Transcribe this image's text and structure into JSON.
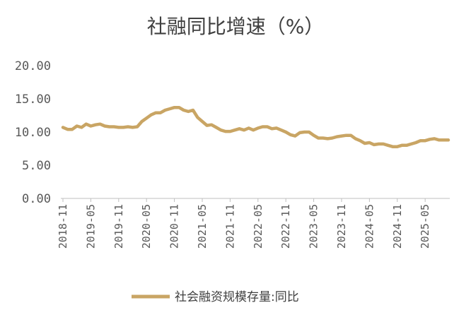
{
  "chart_data": {
    "type": "line",
    "title": "社融同比增速（%）",
    "xlabel": "",
    "ylabel": "",
    "ylim": [
      0,
      20
    ],
    "y_ticks": [
      "0.00",
      "5.00",
      "10.00",
      "15.00",
      "20.00"
    ],
    "x_ticks": [
      "2018-11",
      "2019-05",
      "2019-11",
      "2020-05",
      "2020-11",
      "2021-05",
      "2021-11",
      "2022-05",
      "2022-11",
      "2023-05",
      "2023-11",
      "2024-05",
      "2024-11",
      "2025-05"
    ],
    "grid": false,
    "legend": "bottom",
    "color": "#C9A564",
    "series": [
      {
        "name": "社会融资规模存量:同比",
        "x": [
          "2018-11",
          "2018-12",
          "2019-01",
          "2019-02",
          "2019-03",
          "2019-04",
          "2019-05",
          "2019-06",
          "2019-07",
          "2019-08",
          "2019-09",
          "2019-10",
          "2019-11",
          "2019-12",
          "2020-01",
          "2020-02",
          "2020-03",
          "2020-04",
          "2020-05",
          "2020-06",
          "2020-07",
          "2020-08",
          "2020-09",
          "2020-10",
          "2020-11",
          "2020-12",
          "2021-01",
          "2021-02",
          "2021-03",
          "2021-04",
          "2021-05",
          "2021-06",
          "2021-07",
          "2021-08",
          "2021-09",
          "2021-10",
          "2021-11",
          "2021-12",
          "2022-01",
          "2022-02",
          "2022-03",
          "2022-04",
          "2022-05",
          "2022-06",
          "2022-07",
          "2022-08",
          "2022-09",
          "2022-10",
          "2022-11",
          "2022-12",
          "2023-01",
          "2023-02",
          "2023-03",
          "2023-04",
          "2023-05",
          "2023-06",
          "2023-07",
          "2023-08",
          "2023-09",
          "2023-10",
          "2023-11",
          "2023-12",
          "2024-01",
          "2024-02",
          "2024-03",
          "2024-04",
          "2024-05",
          "2024-06",
          "2024-07",
          "2024-08",
          "2024-09",
          "2024-10",
          "2024-11",
          "2024-12",
          "2025-01",
          "2025-02",
          "2025-03",
          "2025-04",
          "2025-05",
          "2025-06",
          "2025-07",
          "2025-08",
          "2025-09",
          "2025-10"
        ],
        "values": [
          10.7,
          10.4,
          10.4,
          10.9,
          10.7,
          11.2,
          10.9,
          11.1,
          11.2,
          10.9,
          10.8,
          10.8,
          10.7,
          10.7,
          10.8,
          10.7,
          10.8,
          11.6,
          12.1,
          12.6,
          12.9,
          12.9,
          13.3,
          13.5,
          13.7,
          13.7,
          13.3,
          13.1,
          13.3,
          12.2,
          11.6,
          11.0,
          11.1,
          10.7,
          10.3,
          10.1,
          10.1,
          10.3,
          10.5,
          10.3,
          10.6,
          10.3,
          10.6,
          10.8,
          10.8,
          10.5,
          10.6,
          10.3,
          10.0,
          9.6,
          9.4,
          9.9,
          10.0,
          10.0,
          9.5,
          9.1,
          9.1,
          9.0,
          9.1,
          9.3,
          9.4,
          9.5,
          9.5,
          9.0,
          8.7,
          8.3,
          8.4,
          8.1,
          8.2,
          8.2,
          8.0,
          7.8,
          7.8,
          8.0,
          8.0,
          8.2,
          8.4,
          8.7,
          8.7,
          8.9,
          9.0,
          8.8,
          8.8,
          8.8
        ]
      }
    ]
  }
}
